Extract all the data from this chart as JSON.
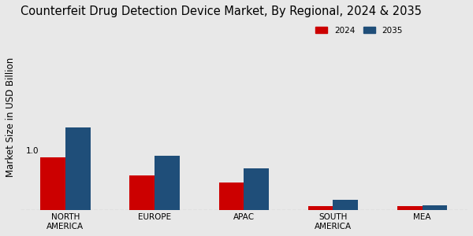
{
  "title": "Counterfeit Drug Detection Device Market, By Regional, 2024 & 2035",
  "ylabel": "Market Size in USD Billion",
  "categories": [
    "NORTH\nAMERICA",
    "EUROPE",
    "APAC",
    "SOUTH\nAMERICA",
    "MEA"
  ],
  "values_2024": [
    1.0,
    0.65,
    0.52,
    0.08,
    0.08
  ],
  "values_2035": [
    1.55,
    1.02,
    0.78,
    0.2,
    0.09
  ],
  "color_2024": "#cc0000",
  "color_2035": "#1f4e79",
  "bar_annotation": "1.0",
  "background_color": "#e8e8e8",
  "legend_labels": [
    "2024",
    "2035"
  ],
  "bar_width": 0.28,
  "ylim": [
    0,
    3.5
  ],
  "title_fontsize": 10.5,
  "axis_label_fontsize": 8.5,
  "tick_fontsize": 7.5
}
